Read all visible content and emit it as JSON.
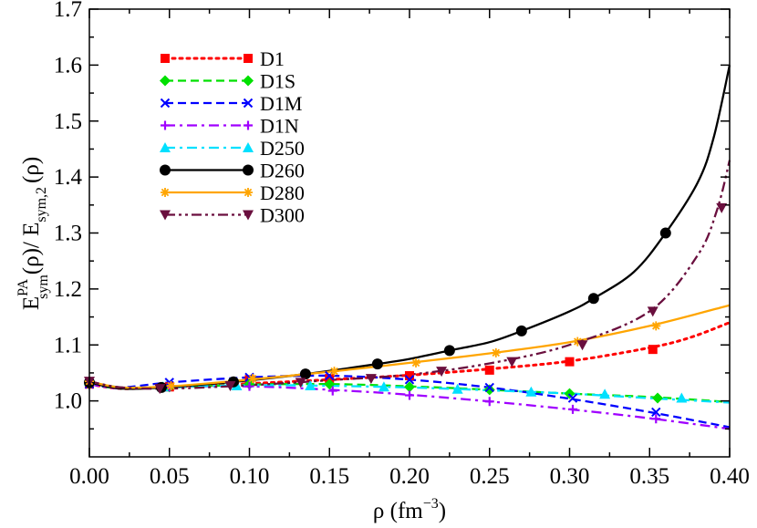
{
  "chart_data": {
    "type": "line",
    "title": "",
    "xlabel": {
      "base": "ρ (fm",
      "sup": "−3",
      "tail": ")"
    },
    "ylabel": {
      "E": "E",
      "sup1": "PA",
      "sub1": "sym",
      "mid": "(ρ)/ E",
      "sub2": "sym,2",
      "tail": "(ρ)"
    },
    "xlim": [
      0.0,
      0.4
    ],
    "ylim": [
      0.9,
      1.7
    ],
    "xticks": [
      0.0,
      0.05,
      0.1,
      0.15,
      0.2,
      0.25,
      0.3,
      0.35,
      0.4
    ],
    "xtick_labels": [
      "0.00",
      "0.05",
      "0.10",
      "0.15",
      "0.20",
      "0.25",
      "0.30",
      "0.35",
      "0.40"
    ],
    "yticks": [
      1.0,
      1.1,
      1.2,
      1.3,
      1.4,
      1.5,
      1.6,
      1.7
    ],
    "ytick_labels": [
      "1.0",
      "1.1",
      "1.2",
      "1.3",
      "1.4",
      "1.5",
      "1.6",
      "1.7"
    ],
    "legend_position": "top-left",
    "grid": false,
    "series": [
      {
        "name": "D1",
        "color": "#ff0000",
        "dash": "dot",
        "marker": "square",
        "curve": [
          [
            0.0,
            1.03
          ],
          [
            0.02,
            1.022
          ],
          [
            0.05,
            1.025
          ],
          [
            0.1,
            1.031
          ],
          [
            0.15,
            1.038
          ],
          [
            0.2,
            1.046
          ],
          [
            0.25,
            1.057
          ],
          [
            0.3,
            1.071
          ],
          [
            0.35,
            1.095
          ],
          [
            0.375,
            1.113
          ],
          [
            0.4,
            1.14
          ]
        ],
        "points": [
          [
            0.0,
            1.03
          ],
          [
            0.05,
            1.025
          ],
          [
            0.1,
            1.038
          ],
          [
            0.15,
            1.04
          ],
          [
            0.2,
            1.045
          ],
          [
            0.25,
            1.055
          ],
          [
            0.3,
            1.07
          ],
          [
            0.352,
            1.092
          ]
        ]
      },
      {
        "name": "D1S",
        "color": "#00e000",
        "dash": "dash",
        "marker": "diamond",
        "curve": [
          [
            0.0,
            1.03
          ],
          [
            0.02,
            1.022
          ],
          [
            0.05,
            1.024
          ],
          [
            0.1,
            1.029
          ],
          [
            0.15,
            1.03
          ],
          [
            0.2,
            1.026
          ],
          [
            0.25,
            1.02
          ],
          [
            0.3,
            1.013
          ],
          [
            0.35,
            1.007
          ],
          [
            0.4,
            0.998
          ]
        ],
        "points": [
          [
            0.0,
            1.03
          ],
          [
            0.05,
            1.025
          ],
          [
            0.1,
            1.03
          ],
          [
            0.15,
            1.03
          ],
          [
            0.2,
            1.025
          ],
          [
            0.25,
            1.02
          ],
          [
            0.3,
            1.013
          ],
          [
            0.355,
            1.005
          ]
        ]
      },
      {
        "name": "D1M",
        "color": "#0000ff",
        "dash": "dash",
        "marker": "x",
        "curve": [
          [
            0.0,
            1.03
          ],
          [
            0.02,
            1.024
          ],
          [
            0.05,
            1.033
          ],
          [
            0.1,
            1.042
          ],
          [
            0.15,
            1.045
          ],
          [
            0.2,
            1.038
          ],
          [
            0.25,
            1.024
          ],
          [
            0.3,
            1.004
          ],
          [
            0.35,
            0.98
          ],
          [
            0.4,
            0.953
          ]
        ],
        "points": [
          [
            0.0,
            1.03
          ],
          [
            0.05,
            1.033
          ],
          [
            0.1,
            1.042
          ],
          [
            0.15,
            1.045
          ],
          [
            0.2,
            1.038
          ],
          [
            0.25,
            1.024
          ],
          [
            0.302,
            1.005
          ],
          [
            0.354,
            0.98
          ]
        ]
      },
      {
        "name": "D1N",
        "color": "#a000ff",
        "dash": "dashdot",
        "marker": "plus",
        "curve": [
          [
            0.0,
            1.03
          ],
          [
            0.02,
            1.022
          ],
          [
            0.05,
            1.025
          ],
          [
            0.1,
            1.026
          ],
          [
            0.15,
            1.02
          ],
          [
            0.2,
            1.011
          ],
          [
            0.25,
            0.999
          ],
          [
            0.3,
            0.985
          ],
          [
            0.35,
            0.969
          ],
          [
            0.4,
            0.95
          ]
        ],
        "points": [
          [
            0.0,
            1.03
          ],
          [
            0.05,
            1.025
          ],
          [
            0.1,
            1.026
          ],
          [
            0.152,
            1.018
          ],
          [
            0.2,
            1.01
          ],
          [
            0.25,
            0.999
          ],
          [
            0.302,
            0.985
          ],
          [
            0.354,
            0.968
          ]
        ]
      },
      {
        "name": "D250",
        "color": "#00e0ff",
        "dash": "dashdot",
        "marker": "triangle-up",
        "curve": [
          [
            0.0,
            1.035
          ],
          [
            0.02,
            1.024
          ],
          [
            0.05,
            1.025
          ],
          [
            0.1,
            1.028
          ],
          [
            0.15,
            1.027
          ],
          [
            0.2,
            1.024
          ],
          [
            0.25,
            1.019
          ],
          [
            0.3,
            1.013
          ],
          [
            0.35,
            1.005
          ],
          [
            0.4,
            0.997
          ]
        ],
        "points": [
          [
            0.0,
            1.035
          ],
          [
            0.046,
            1.025
          ],
          [
            0.092,
            1.027
          ],
          [
            0.138,
            1.027
          ],
          [
            0.184,
            1.025
          ],
          [
            0.23,
            1.021
          ],
          [
            0.276,
            1.016
          ],
          [
            0.322,
            1.012
          ],
          [
            0.37,
            1.005
          ]
        ]
      },
      {
        "name": "D260",
        "color": "#000000",
        "dash": "solid",
        "marker": "circle",
        "curve": [
          [
            0.0,
            1.033
          ],
          [
            0.02,
            1.022
          ],
          [
            0.045,
            1.024
          ],
          [
            0.09,
            1.034
          ],
          [
            0.135,
            1.048
          ],
          [
            0.18,
            1.066
          ],
          [
            0.2,
            1.075
          ],
          [
            0.225,
            1.09
          ],
          [
            0.25,
            1.105
          ],
          [
            0.27,
            1.125
          ],
          [
            0.3,
            1.16
          ],
          [
            0.315,
            1.183
          ],
          [
            0.34,
            1.23
          ],
          [
            0.36,
            1.3
          ],
          [
            0.38,
            1.39
          ],
          [
            0.39,
            1.47
          ],
          [
            0.4,
            1.6
          ]
        ],
        "points": [
          [
            0.0,
            1.033
          ],
          [
            0.045,
            1.024
          ],
          [
            0.09,
            1.034
          ],
          [
            0.135,
            1.048
          ],
          [
            0.18,
            1.066
          ],
          [
            0.225,
            1.09
          ],
          [
            0.27,
            1.125
          ],
          [
            0.315,
            1.183
          ],
          [
            0.36,
            1.3
          ]
        ]
      },
      {
        "name": "D280",
        "color": "#ffa500",
        "dash": "solid",
        "marker": "asterisk",
        "curve": [
          [
            0.0,
            1.035
          ],
          [
            0.02,
            1.024
          ],
          [
            0.05,
            1.026
          ],
          [
            0.1,
            1.038
          ],
          [
            0.153,
            1.053
          ],
          [
            0.2,
            1.068
          ],
          [
            0.25,
            1.085
          ],
          [
            0.3,
            1.105
          ],
          [
            0.35,
            1.134
          ],
          [
            0.4,
            1.171
          ]
        ],
        "points": [
          [
            0.0,
            1.035
          ],
          [
            0.051,
            1.027
          ],
          [
            0.102,
            1.04
          ],
          [
            0.153,
            1.053
          ],
          [
            0.204,
            1.068
          ],
          [
            0.254,
            1.086
          ],
          [
            0.305,
            1.106
          ],
          [
            0.354,
            1.134
          ]
        ]
      },
      {
        "name": "D300",
        "color": "#6a0f3e",
        "dash": "dashdotdot",
        "marker": "triangle-down",
        "curve": [
          [
            0.0,
            1.035
          ],
          [
            0.02,
            1.024
          ],
          [
            0.05,
            1.022
          ],
          [
            0.1,
            1.028
          ],
          [
            0.15,
            1.037
          ],
          [
            0.2,
            1.047
          ],
          [
            0.25,
            1.067
          ],
          [
            0.3,
            1.1
          ],
          [
            0.35,
            1.16
          ],
          [
            0.38,
            1.26
          ],
          [
            0.392,
            1.34
          ],
          [
            0.4,
            1.43
          ]
        ],
        "points": [
          [
            0.0,
            1.035
          ],
          [
            0.044,
            1.022
          ],
          [
            0.088,
            1.027
          ],
          [
            0.132,
            1.033
          ],
          [
            0.176,
            1.04
          ],
          [
            0.22,
            1.053
          ],
          [
            0.264,
            1.07
          ],
          [
            0.308,
            1.1
          ],
          [
            0.352,
            1.16
          ],
          [
            0.395,
            1.345
          ]
        ]
      }
    ]
  }
}
